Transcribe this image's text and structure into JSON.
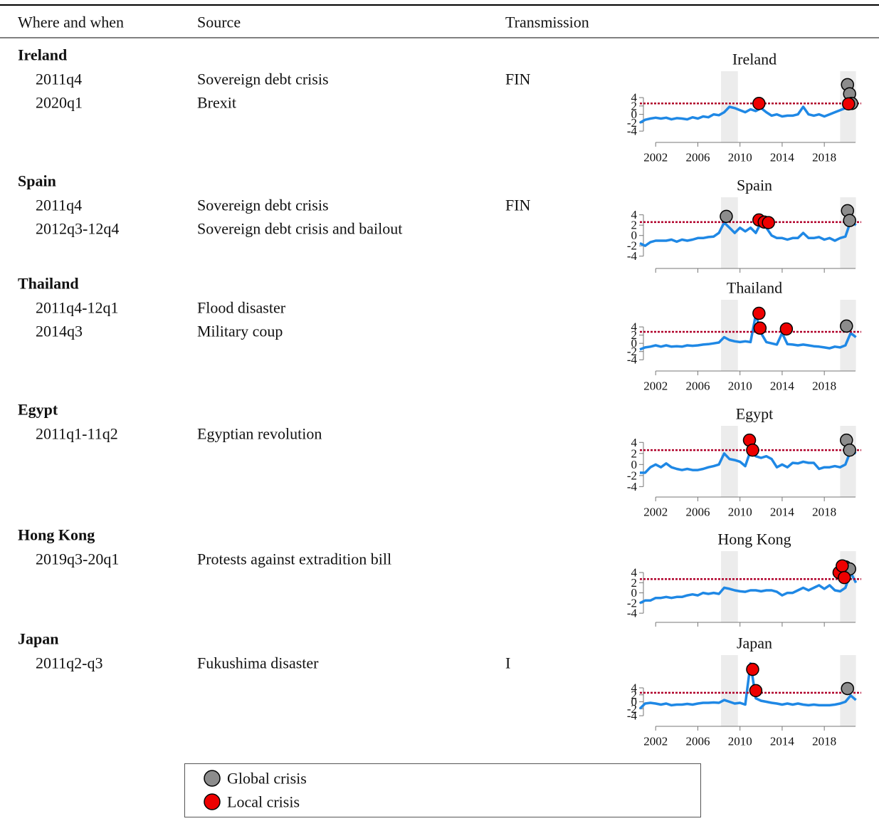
{
  "table": {
    "headers": [
      "Where and when",
      "Source",
      "Transmission"
    ],
    "groups": [
      {
        "country": "Ireland",
        "events": [
          {
            "when": "2011q4",
            "source": "Sovereign debt crisis",
            "transmission": "FIN"
          },
          {
            "when": "2020q1",
            "source": "Brexit"
          }
        ]
      },
      {
        "country": "Spain",
        "events": [
          {
            "when": "2011q4",
            "source": "Sovereign debt crisis",
            "transmission": "FIN"
          },
          {
            "when": "2012q3-12q4",
            "source": "Sovereign debt crisis and bailout"
          }
        ]
      },
      {
        "country": "Thailand",
        "events": [
          {
            "when": "2011q4-12q1",
            "source": "Flood disaster"
          },
          {
            "when": "2014q3",
            "source": "Military coup"
          }
        ]
      },
      {
        "country": "Egypt",
        "events": [
          {
            "when": "2011q1-11q2",
            "source": "Egyptian revolution"
          }
        ]
      },
      {
        "country": "Hong Kong",
        "events": [
          {
            "when": "2019q3-20q1",
            "source": "Protests against extradition bill"
          }
        ]
      },
      {
        "country": "Japan",
        "events": [
          {
            "when": "2011q2-q3",
            "source": "Fukushima disaster",
            "transmission": "I"
          }
        ]
      }
    ]
  },
  "legend": {
    "items": [
      {
        "label": "Global crisis",
        "color": "#8c8c8c"
      },
      {
        "label": "Local crisis",
        "color": "#ee0000"
      }
    ]
  },
  "chart_data": [
    {
      "type": "line",
      "title": "Ireland",
      "xlim": [
        2000.5,
        2021.5
      ],
      "ylim": [
        -5,
        10.3
      ],
      "xticks": [
        2002,
        2006,
        2010,
        2014,
        2018
      ],
      "yticks": [
        4,
        2,
        0,
        -2,
        -4
      ],
      "show_xtick_labels": true,
      "threshold": 2.6,
      "threshold_color": "#b0002a",
      "shaded": [
        [
          2008.2,
          2009.8
        ],
        [
          2019.5,
          2021
        ]
      ],
      "x": [
        2000.5,
        2001,
        2001.5,
        2002,
        2002.5,
        2003,
        2003.5,
        2004,
        2004.5,
        2005,
        2005.5,
        2006,
        2006.5,
        2007,
        2007.5,
        2008,
        2008.5,
        2009,
        2009.5,
        2010,
        2010.5,
        2011,
        2011.5,
        2012,
        2012.5,
        2013,
        2013.5,
        2014,
        2014.5,
        2015,
        2015.5,
        2016,
        2016.5,
        2017,
        2017.5,
        2018,
        2018.5,
        2019,
        2019.5,
        2020,
        2020.5,
        2021
      ],
      "series": [
        {
          "color": "#1f88e5",
          "values": [
            -2,
            -1.3,
            -1,
            -0.8,
            -1,
            -0.8,
            -1.2,
            -0.9,
            -1,
            -1.2,
            -0.7,
            -1,
            -0.5,
            -0.7,
            0,
            -0.2,
            0.5,
            1.8,
            1.5,
            1,
            0.5,
            1.2,
            0.8,
            1.5,
            0.5,
            -0.3,
            0,
            -0.5,
            -0.3,
            -0.3,
            0,
            1.8,
            0,
            -0.3,
            0,
            -0.5,
            0,
            0.5,
            1,
            1.5,
            3,
            2.5
          ]
        }
      ],
      "markers": [
        {
          "x": [
            2020.2,
            2020.4,
            2020.6
          ],
          "values": [
            7.1,
            4.9,
            2.6
          ]
        },
        {
          "x": [
            2011.8,
            2020.3
          ],
          "values": [
            2.6,
            2.5
          ]
        }
      ]
    },
    {
      "type": "line",
      "title": "Spain",
      "xlim": [
        2000.5,
        2021.5
      ],
      "ylim": [
        -5,
        7.4
      ],
      "xticks": [
        2002,
        2006,
        2010,
        2014,
        2018
      ],
      "yticks": [
        4,
        2,
        0,
        -2,
        -4
      ],
      "show_xtick_labels": false,
      "threshold": 2.6,
      "threshold_color": "#b0002a",
      "shaded": [
        [
          2008.2,
          2009.8
        ],
        [
          2019.5,
          2021
        ]
      ],
      "x": [
        2000.5,
        2001,
        2001.5,
        2002,
        2002.5,
        2003,
        2003.5,
        2004,
        2004.5,
        2005,
        2005.5,
        2006,
        2006.5,
        2007,
        2007.5,
        2008,
        2008.5,
        2009,
        2009.5,
        2010,
        2010.5,
        2011,
        2011.5,
        2012,
        2012.5,
        2013,
        2013.5,
        2014,
        2014.5,
        2015,
        2015.5,
        2016,
        2016.5,
        2017,
        2017.5,
        2018,
        2018.5,
        2019,
        2019.5,
        2020,
        2020.5,
        2021
      ],
      "series": [
        {
          "color": "#1f88e5",
          "values": [
            -1.5,
            -2,
            -1.3,
            -1,
            -1,
            -1,
            -0.8,
            -1.2,
            -0.8,
            -1,
            -0.8,
            -0.5,
            -0.5,
            -0.3,
            -0.2,
            0.5,
            2.5,
            1.5,
            0.5,
            1.5,
            0.8,
            1.5,
            0.5,
            2.5,
            1.5,
            0,
            -0.5,
            -0.5,
            -0.8,
            -0.5,
            -0.5,
            0.5,
            -0.5,
            -0.5,
            -0.3,
            -0.8,
            -0.5,
            -1,
            -0.5,
            -0.2,
            2.8,
            2
          ]
        }
      ],
      "markers": [
        {
          "x": [
            2008.7,
            2020.2,
            2020.4
          ],
          "values": [
            3.7,
            4.8,
            2.9
          ]
        },
        {
          "x": [
            2011.8,
            2012.3,
            2012.7
          ],
          "values": [
            3.0,
            2.6,
            2.5
          ]
        }
      ]
    },
    {
      "type": "line",
      "title": "Thailand",
      "xlim": [
        2000.5,
        2021.5
      ],
      "ylim": [
        -5,
        10.6
      ],
      "xticks": [
        2002,
        2006,
        2010,
        2014,
        2018
      ],
      "yticks": [
        4,
        2,
        0,
        -2,
        -4
      ],
      "show_xtick_labels": true,
      "threshold": 2.8,
      "threshold_color": "#b0002a",
      "shaded": [
        [
          2008.2,
          2009.8
        ],
        [
          2019.5,
          2021
        ]
      ],
      "x": [
        2000.5,
        2001,
        2001.5,
        2002,
        2002.5,
        2003,
        2003.5,
        2004,
        2004.5,
        2005,
        2005.5,
        2006,
        2006.5,
        2007,
        2007.5,
        2008,
        2008.5,
        2009,
        2009.5,
        2010,
        2010.5,
        2011,
        2011.5,
        2012,
        2012.5,
        2013,
        2013.5,
        2014,
        2014.5,
        2015,
        2015.5,
        2016,
        2016.5,
        2017,
        2017.5,
        2018,
        2018.5,
        2019,
        2019.5,
        2020,
        2020.5,
        2021
      ],
      "series": [
        {
          "color": "#1f88e5",
          "values": [
            -1.5,
            -1,
            -0.8,
            -0.5,
            -0.8,
            -0.5,
            -0.8,
            -0.7,
            -0.8,
            -0.5,
            -0.6,
            -0.5,
            -0.3,
            -0.2,
            0,
            0.2,
            1.5,
            0.8,
            0.5,
            0.3,
            0.5,
            0.3,
            7,
            2.5,
            0.3,
            0,
            -0.3,
            2.5,
            -0.2,
            -0.3,
            -0.5,
            -0.3,
            -0.5,
            -0.7,
            -0.8,
            -1,
            -1.2,
            -0.8,
            -1,
            -0.5,
            2.5,
            1.5
          ]
        }
      ],
      "markers": [
        {
          "x": [
            2020.1
          ],
          "values": [
            4.2
          ]
        },
        {
          "x": [
            2011.8,
            2011.9,
            2014.4
          ],
          "values": [
            7.3,
            3.7,
            3.5
          ]
        }
      ]
    },
    {
      "type": "line",
      "title": "Egypt",
      "xlim": [
        2000.5,
        2021.5
      ],
      "ylim": [
        -4.6,
        7.0
      ],
      "xticks": [
        2002,
        2006,
        2010,
        2014,
        2018
      ],
      "yticks": [
        4,
        2,
        0,
        -2,
        -4
      ],
      "show_xtick_labels": true,
      "threshold": 2.6,
      "threshold_color": "#b0002a",
      "shaded": [
        [
          2008.2,
          2009.8
        ],
        [
          2019.5,
          2021
        ]
      ],
      "x": [
        2000.5,
        2001,
        2001.5,
        2002,
        2002.5,
        2003,
        2003.5,
        2004,
        2004.5,
        2005,
        2005.5,
        2006,
        2006.5,
        2007,
        2007.5,
        2008,
        2008.5,
        2009,
        2009.5,
        2010,
        2010.5,
        2011,
        2011.5,
        2012,
        2012.5,
        2013,
        2013.5,
        2014,
        2014.5,
        2015,
        2015.5,
        2016,
        2016.5,
        2017,
        2017.5,
        2018,
        2018.5,
        2019,
        2019.5,
        2020,
        2020.5,
        2021
      ],
      "series": [
        {
          "color": "#1f88e5",
          "values": [
            -1.5,
            -1.5,
            -0.5,
            0,
            -0.5,
            0.2,
            -0.5,
            -0.8,
            -1,
            -0.8,
            -1,
            -1,
            -0.8,
            -0.5,
            -0.3,
            0,
            2,
            1,
            0.8,
            0.5,
            -0.3,
            2.5,
            1.5,
            1.2,
            1.5,
            1,
            -0.5,
            0,
            -0.5,
            0.3,
            0.2,
            0.5,
            0.3,
            0.3,
            -0.8,
            -0.5,
            -0.5,
            -0.3,
            -0.5,
            0,
            2.5,
            2
          ]
        }
      ],
      "markers": [
        {
          "x": [
            2020.1,
            2020.4
          ],
          "values": [
            4.4,
            2.6
          ]
        },
        {
          "x": [
            2010.9,
            2011.2
          ],
          "values": [
            4.4,
            2.6
          ]
        }
      ]
    },
    {
      "type": "line",
      "title": "Hong Kong",
      "xlim": [
        2000.5,
        2021.5
      ],
      "ylim": [
        -4.4,
        8.2
      ],
      "xticks": [
        2002,
        2006,
        2010,
        2014,
        2018
      ],
      "yticks": [
        4,
        2,
        0,
        -2,
        -4
      ],
      "show_xtick_labels": false,
      "threshold": 2.7,
      "threshold_color": "#b0002a",
      "shaded": [
        [
          2008.2,
          2009.8
        ],
        [
          2019.5,
          2021
        ]
      ],
      "x": [
        2000.5,
        2001,
        2001.5,
        2002,
        2002.5,
        2003,
        2003.5,
        2004,
        2004.5,
        2005,
        2005.5,
        2006,
        2006.5,
        2007,
        2007.5,
        2008,
        2008.5,
        2009,
        2009.5,
        2010,
        2010.5,
        2011,
        2011.5,
        2012,
        2012.5,
        2013,
        2013.5,
        2014,
        2014.5,
        2015,
        2015.5,
        2016,
        2016.5,
        2017,
        2017.5,
        2018,
        2018.5,
        2019,
        2019.5,
        2020,
        2020.5,
        2021
      ],
      "series": [
        {
          "color": "#1f88e5",
          "values": [
            -2,
            -1.5,
            -1.5,
            -1,
            -1,
            -0.8,
            -1,
            -0.8,
            -0.8,
            -0.5,
            -0.3,
            -0.5,
            0,
            -0.2,
            0,
            -0.2,
            1,
            0.8,
            0.5,
            0.3,
            0.2,
            0.5,
            0.5,
            0.3,
            0.5,
            0.5,
            0.2,
            -0.5,
            0,
            0,
            0.5,
            1,
            0.5,
            1,
            1.5,
            0.8,
            1.5,
            0.5,
            0.3,
            1,
            4,
            2
          ]
        }
      ],
      "markers": [
        {
          "x": [
            2020.0,
            2020.4
          ],
          "values": [
            5.1,
            4.7
          ]
        },
        {
          "x": [
            2019.4,
            2019.7,
            2019.9
          ],
          "values": [
            4.0,
            5.3,
            3.0
          ]
        }
      ]
    },
    {
      "type": "line",
      "title": "Japan",
      "xlim": [
        2000.5,
        2021.5
      ],
      "ylim": [
        -5,
        13.4
      ],
      "xticks": [
        2002,
        2006,
        2010,
        2014,
        2018
      ],
      "yticks": [
        4,
        2,
        0,
        -2,
        -4
      ],
      "show_xtick_labels": true,
      "threshold": 2.6,
      "threshold_color": "#b0002a",
      "shaded": [
        [
          2008.2,
          2009.8
        ],
        [
          2019.5,
          2021
        ]
      ],
      "x": [
        2000.5,
        2001,
        2001.5,
        2002,
        2002.5,
        2003,
        2003.5,
        2004,
        2004.5,
        2005,
        2005.5,
        2006,
        2006.5,
        2007,
        2007.5,
        2008,
        2008.5,
        2009,
        2009.5,
        2010,
        2010.5,
        2011,
        2011.5,
        2012,
        2012.5,
        2013,
        2013.5,
        2014,
        2014.5,
        2015,
        2015.5,
        2016,
        2016.5,
        2017,
        2017.5,
        2018,
        2018.5,
        2019,
        2019.5,
        2020,
        2020.5,
        2021
      ],
      "series": [
        {
          "color": "#1f88e5",
          "values": [
            -2,
            -0.5,
            -0.3,
            -0.5,
            -0.8,
            -0.5,
            -1,
            -0.8,
            -0.8,
            -0.6,
            -0.8,
            -0.5,
            -0.3,
            -0.3,
            -0.2,
            -0.3,
            0.5,
            0,
            -0.5,
            -0.3,
            -0.8,
            11,
            1,
            0.3,
            0,
            -0.3,
            -0.5,
            -0.8,
            -0.5,
            -0.8,
            -0.5,
            -0.8,
            -1,
            -0.8,
            -1,
            -1,
            -1,
            -0.8,
            -0.5,
            0,
            1.8,
            0.5
          ]
        }
      ],
      "markers": [
        {
          "x": [
            2020.2
          ],
          "values": [
            3.8
          ]
        },
        {
          "x": [
            2011.2,
            2011.5
          ],
          "values": [
            9.3,
            3.2
          ]
        }
      ]
    }
  ]
}
